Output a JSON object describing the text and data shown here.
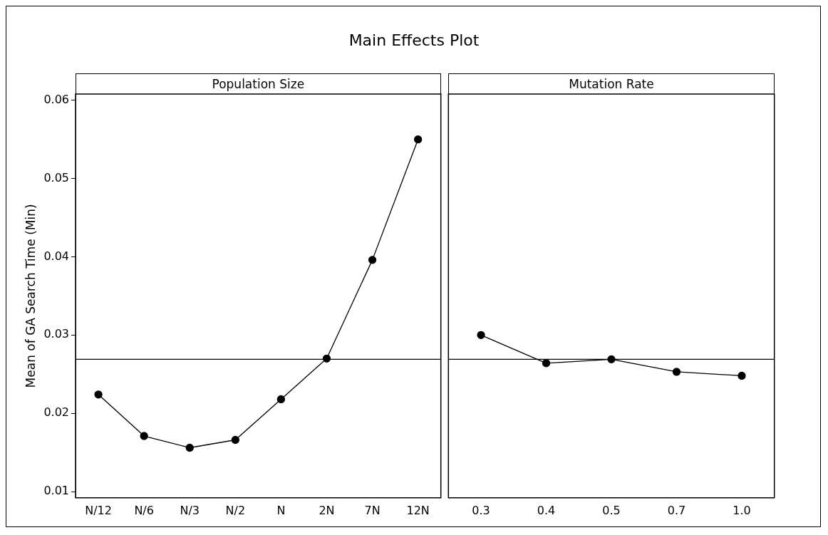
{
  "chart_data": [
    {
      "type": "line",
      "title": "Main Effects Plot",
      "subtitle": "Population Size",
      "ylabel": "Mean of GA Search Time (Min)",
      "categories": [
        "N/12",
        "N/6",
        "N/3",
        "N/2",
        "N",
        "2N",
        "7N",
        "12N"
      ],
      "series": [
        {
          "color": "#000000",
          "values": [
            0.0224,
            0.0171,
            0.0156,
            0.0166,
            0.0218,
            0.027,
            0.0396,
            0.055
          ]
        }
      ],
      "ylim": [
        0.0092,
        0.0608
      ],
      "yticks": [
        0.01,
        0.02,
        0.03,
        0.04,
        0.05,
        0.06
      ],
      "ref_lines": [
        {
          "axis": "y",
          "value": 0.0269,
          "color": "#000000"
        }
      ],
      "grid": false,
      "legend": false,
      "marker": "circle",
      "line_style": "solid"
    },
    {
      "type": "line",
      "subtitle": "Mutation Rate",
      "categories": [
        "0.3",
        "0.4",
        "0.5",
        "0.7",
        "1.0"
      ],
      "series": [
        {
          "color": "#000000",
          "values": [
            0.03,
            0.0264,
            0.0269,
            0.0253,
            0.0248
          ]
        }
      ],
      "ylim": [
        0.0092,
        0.0608
      ],
      "yticks": [
        0.01,
        0.02,
        0.03,
        0.04,
        0.05,
        0.06
      ],
      "tick_labels": "x",
      "ref_lines": [
        {
          "axis": "y",
          "value": 0.0269,
          "color": "#000000"
        }
      ],
      "grid": false,
      "legend": false,
      "marker": "circle",
      "line_style": "solid"
    }
  ]
}
